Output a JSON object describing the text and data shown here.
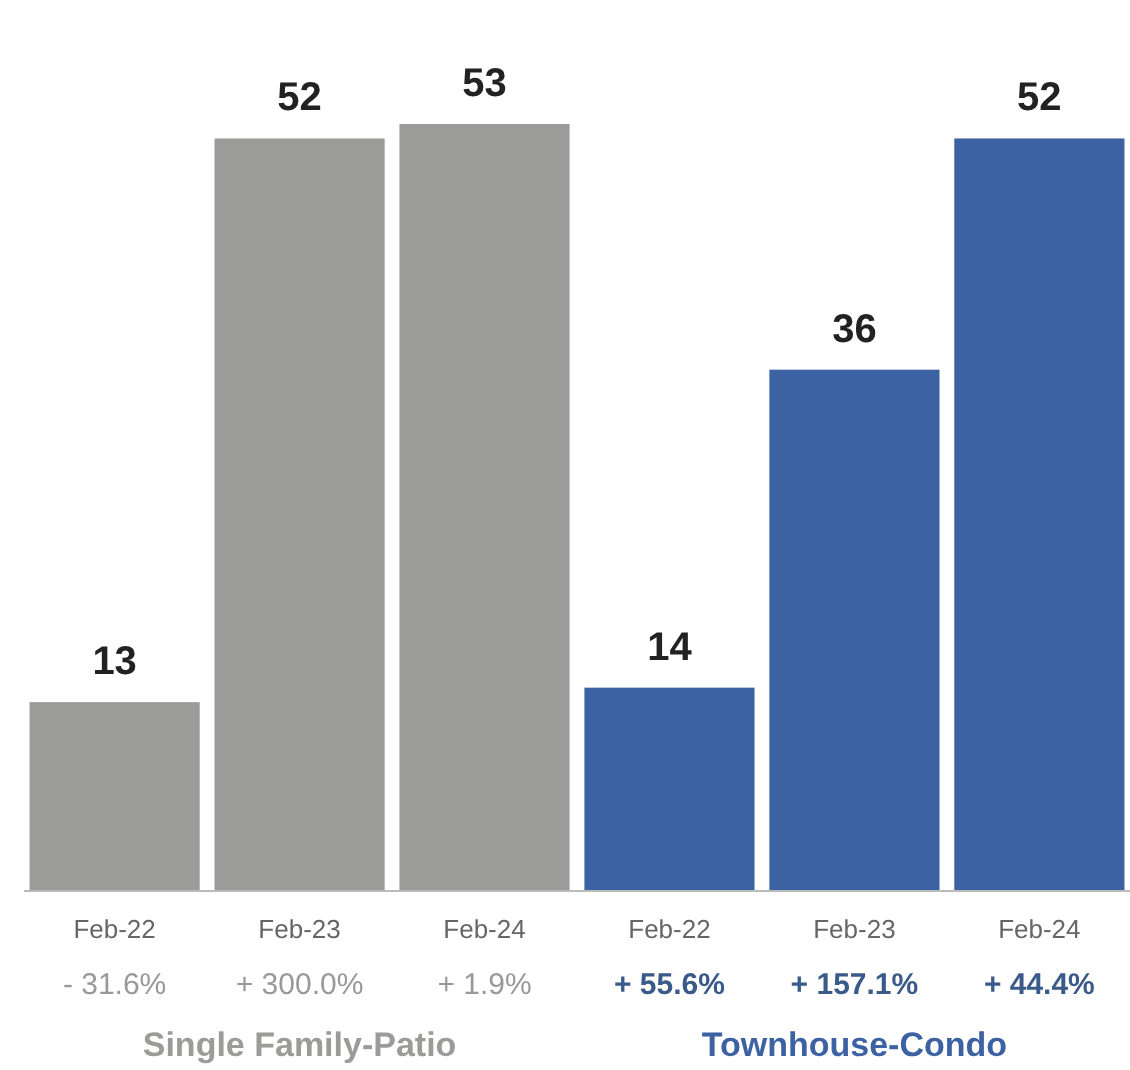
{
  "chart_data": {
    "type": "bar",
    "categories": [
      "Feb-22",
      "Feb-23",
      "Feb-24",
      "Feb-22",
      "Feb-23",
      "Feb-24"
    ],
    "series": [
      {
        "name": "Single Family-Patio",
        "color": "#9b9b99",
        "values": [
          13,
          52,
          53,
          null,
          null,
          null
        ]
      },
      {
        "name": "Townhouse-Condo",
        "color": "#3d62a3",
        "values": [
          null,
          null,
          null,
          14,
          36,
          52
        ]
      }
    ],
    "data_labels": true,
    "annotations": [
      "- 31.6%",
      "+ 300.0%",
      "+ 1.9%",
      "+ 55.6%",
      "+ 157.1%",
      "+ 44.4%"
    ]
  }
}
